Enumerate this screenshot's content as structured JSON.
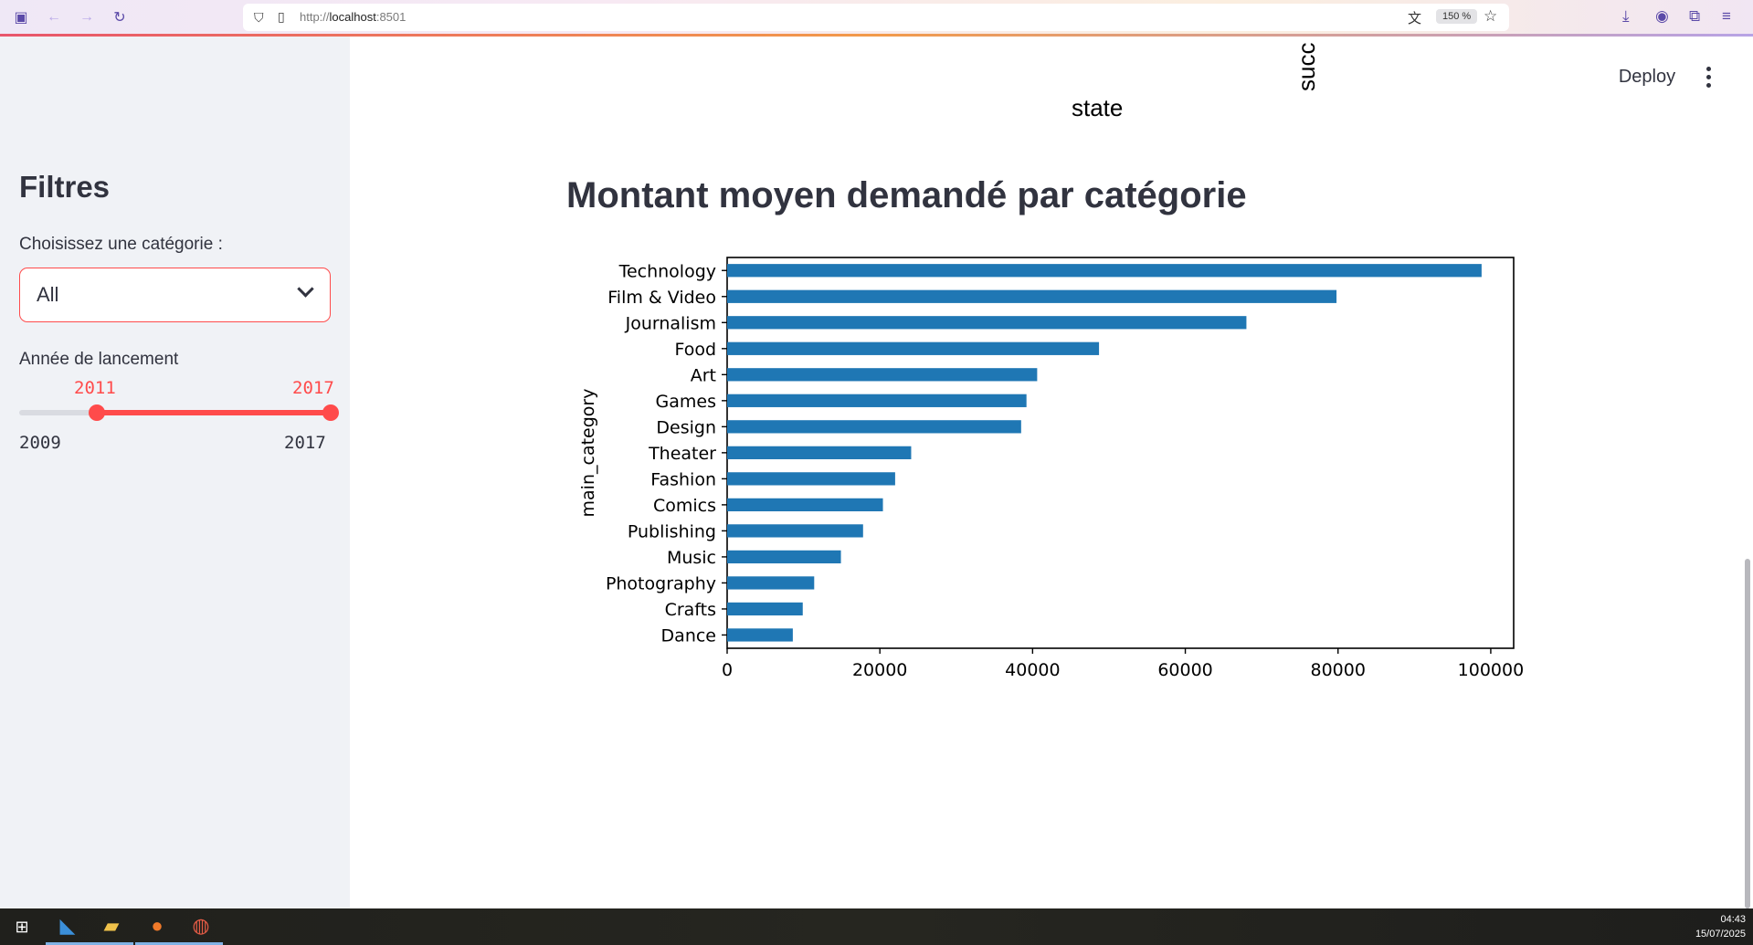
{
  "browser": {
    "url_prefix": "http://",
    "url_host": "localhost",
    "url_port": ":8501",
    "zoom": "150 %"
  },
  "header": {
    "deploy_label": "Deploy"
  },
  "previous_chart": {
    "ylabel_fragment": "succ",
    "xlabel": "state"
  },
  "sidebar": {
    "title": "Filtres",
    "category_label": "Choisissez une catégorie :",
    "category_value": "All",
    "year_label": "Année de lancement",
    "year_min": "2009",
    "year_max": "2017",
    "year_selected_low": "2011",
    "year_selected_high": "2017"
  },
  "main": {
    "section_title": "Montant moyen demandé par catégorie"
  },
  "chart_data": {
    "type": "bar",
    "orientation": "horizontal",
    "ylabel": "main_category",
    "xlabel": "",
    "categories": [
      "Technology",
      "Film & Video",
      "Journalism",
      "Food",
      "Art",
      "Games",
      "Design",
      "Theater",
      "Fashion",
      "Comics",
      "Publishing",
      "Music",
      "Photography",
      "Crafts",
      "Dance"
    ],
    "values": [
      98800,
      79800,
      68000,
      48700,
      40600,
      39200,
      38500,
      24100,
      22000,
      20400,
      17800,
      14900,
      11400,
      9900,
      8600
    ],
    "xlim": [
      0,
      103000
    ],
    "xticks": [
      "0",
      "20000",
      "40000",
      "60000",
      "80000",
      "100000"
    ],
    "color": "#1f77b4",
    "grid": false
  },
  "taskbar": {
    "time": "04:43",
    "date": "15/07/2025"
  }
}
